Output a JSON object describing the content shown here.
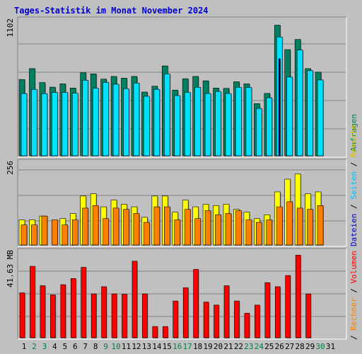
{
  "title": "Tages-Statistik im Monat November 2024",
  "chart_data": [
    {
      "type": "bar",
      "panel": "top",
      "categories": [
        "1",
        "2",
        "3",
        "4",
        "5",
        "6",
        "7",
        "8",
        "9",
        "10",
        "11",
        "12",
        "13",
        "14",
        "15",
        "16",
        "17",
        "18",
        "19",
        "20",
        "21",
        "22",
        "23",
        "24",
        "25",
        "26",
        "27",
        "28",
        "29",
        "30",
        "31"
      ],
      "y_top_label": "1102",
      "ylim": [
        0,
        1102
      ],
      "series": [
        {
          "name": "Anfragen",
          "color": "#008060",
          "values": [
            625,
            714,
            600,
            562,
            589,
            555,
            680,
            671,
            628,
            650,
            636,
            650,
            522,
            570,
            736,
            538,
            631,
            650,
            614,
            555,
            552,
            606,
            589,
            427,
            511,
            1070,
            870,
            953,
            714,
            685,
            0
          ]
        },
        {
          "name": "Seiten",
          "color": "#00e0ff",
          "values": [
            510,
            544,
            509,
            519,
            519,
            513,
            619,
            554,
            601,
            586,
            549,
            595,
            487,
            544,
            671,
            493,
            519,
            561,
            510,
            527,
            510,
            561,
            560,
            388,
            475,
            973,
            645,
            866,
            697,
            621,
            0
          ]
        },
        {
          "name": "Dateien",
          "color": "#0000c0",
          "values": [
            0,
            0,
            0,
            0,
            0,
            0,
            0,
            0,
            0,
            0,
            0,
            0,
            0,
            0,
            0,
            0,
            0,
            0,
            0,
            0,
            0,
            0,
            0,
            0,
            0,
            795,
            0,
            0,
            0,
            0,
            0
          ]
        }
      ]
    },
    {
      "type": "bar",
      "panel": "middle",
      "categories": [
        "1",
        "2",
        "3",
        "4",
        "5",
        "6",
        "7",
        "8",
        "9",
        "10",
        "11",
        "12",
        "13",
        "14",
        "15",
        "16",
        "17",
        "18",
        "19",
        "20",
        "21",
        "22",
        "23",
        "24",
        "25",
        "26",
        "27",
        "28",
        "29",
        "30",
        "31"
      ],
      "y_top_label": "256",
      "ylim": [
        0,
        256
      ],
      "series": [
        {
          "name": "Besuche",
          "color": "#ffff00",
          "values": [
            79,
            79,
            91,
            0,
            83,
            99,
            154,
            161,
            120,
            141,
            128,
            120,
            87,
            154,
            154,
            103,
            141,
            120,
            128,
            124,
            128,
            112,
            103,
            83,
            95,
            167,
            207,
            223,
            161,
            167,
            0
          ]
        },
        {
          "name": "Rechner",
          "color": "#ff8000",
          "values": [
            63,
            63,
            91,
            79,
            63,
            79,
            116,
            124,
            83,
            116,
            112,
            99,
            71,
            120,
            120,
            79,
            112,
            83,
            108,
            95,
            99,
            108,
            79,
            71,
            79,
            120,
            136,
            116,
            112,
            124,
            0
          ]
        }
      ]
    },
    {
      "type": "bar",
      "panel": "bottom",
      "categories": [
        "1",
        "2",
        "3",
        "4",
        "5",
        "6",
        "7",
        "8",
        "9",
        "10",
        "11",
        "12",
        "13",
        "14",
        "15",
        "16",
        "17",
        "18",
        "19",
        "20",
        "21",
        "22",
        "23",
        "24",
        "25",
        "26",
        "27",
        "28",
        "29",
        "30",
        "31"
      ],
      "y_top_label": "41.63 MB",
      "ylim": [
        0,
        41.63
      ],
      "series": [
        {
          "name": "Volumen",
          "color": "#ff0000",
          "values": [
            22,
            35,
            25.5,
            21,
            26,
            29,
            34.5,
            21.5,
            25,
            21.5,
            21.3,
            37.5,
            21.5,
            5.5,
            5.5,
            18,
            24.5,
            33.5,
            17.5,
            16,
            25.5,
            18,
            12,
            16,
            27,
            25,
            30.5,
            40.5,
            21.5,
            0,
            0
          ]
        }
      ]
    }
  ],
  "weekend_days": [
    2,
    3,
    9,
    10,
    16,
    17,
    23,
    24,
    30
  ],
  "day_colors": {
    "weekday": "#000000",
    "weekend": "#008040"
  },
  "legend": {
    "top": [
      {
        "text": "Anfragen",
        "color": "#008060"
      }
    ],
    "middle": [
      {
        "text": "Dateien",
        "color": "#0000c0"
      },
      {
        "text": " / ",
        "color": "#000000"
      },
      {
        "text": "Seiten",
        "color": "#00c0ff"
      },
      {
        "text": " / ",
        "color": "#000000"
      },
      {
        "text": "Besuche",
        "color": "#e0c000"
      }
    ],
    "bottom": [
      {
        "text": " / ",
        "color": "#000000"
      },
      {
        "text": "Rechner",
        "color": "#ff8000"
      },
      {
        "text": " / ",
        "color": "#000000"
      },
      {
        "text": "Volumen",
        "color": "#ff0000"
      }
    ]
  },
  "colors": {
    "background": "#c0c0c0",
    "panel": "#c0c0c0",
    "grid": "#808080",
    "title": "#0000d0"
  }
}
